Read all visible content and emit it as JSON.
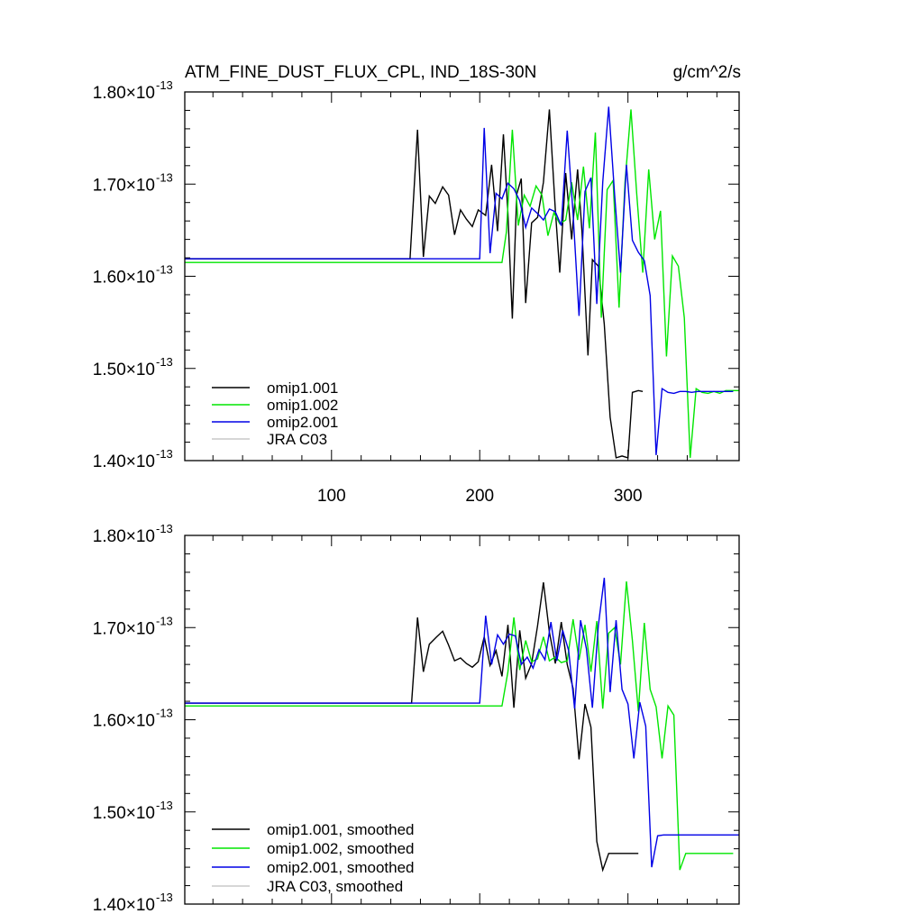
{
  "chart_data": [
    {
      "type": "line",
      "title": "ATM_FINE_DUST_FLUX_CPL, IND_18S-30N",
      "units": "g/cm^2/s",
      "xlim": [
        1,
        375
      ],
      "ylim": [
        1.4,
        1.8
      ],
      "y_exponent": "-13",
      "x_ticks": [
        100,
        200,
        300
      ],
      "x_tick_labels": [
        "100",
        "200",
        "300"
      ],
      "y_ticks": [
        1.4,
        1.5,
        1.6,
        1.7,
        1.8
      ],
      "y_tick_labels": [
        "1.40",
        "1.50",
        "1.60",
        "1.70",
        "1.80"
      ],
      "legend_position": "bottom-left",
      "series": [
        {
          "name": "omip1.001",
          "color": "#000000",
          "x": [
            1,
            150,
            153,
            158,
            162,
            166,
            170,
            175,
            179,
            183,
            187,
            191,
            195,
            199,
            204,
            208,
            212,
            216,
            219,
            222,
            225,
            228,
            231,
            235,
            239,
            243,
            247,
            251,
            254,
            258,
            262,
            266,
            269,
            273,
            276,
            280,
            284,
            288,
            292,
            296,
            300,
            303,
            307,
            310
          ],
          "y": [
            1.619,
            1.619,
            1.619,
            1.759,
            1.621,
            1.687,
            1.679,
            1.697,
            1.688,
            1.645,
            1.672,
            1.662,
            1.654,
            1.672,
            1.666,
            1.721,
            1.649,
            1.754,
            1.668,
            1.554,
            1.689,
            1.706,
            1.571,
            1.658,
            1.664,
            1.702,
            1.781,
            1.672,
            1.604,
            1.712,
            1.64,
            1.716,
            1.648,
            1.514,
            1.618,
            1.611,
            1.548,
            1.447,
            1.403,
            1.405,
            1.403,
            1.474,
            1.476,
            1.475
          ]
        },
        {
          "name": "omip1.002",
          "color": "#00e600",
          "x": [
            1,
            215,
            218,
            222,
            226,
            230,
            234,
            238,
            242,
            246,
            250,
            254,
            258,
            262,
            266,
            270,
            274,
            278,
            282,
            286,
            290,
            294,
            298,
            302,
            306,
            310,
            314,
            318,
            322,
            326,
            330,
            334,
            338,
            342,
            346,
            350,
            354,
            358,
            362,
            366,
            370,
            375
          ],
          "y": [
            1.615,
            1.615,
            1.648,
            1.759,
            1.655,
            1.688,
            1.676,
            1.698,
            1.688,
            1.644,
            1.669,
            1.657,
            1.661,
            1.702,
            1.661,
            1.719,
            1.652,
            1.756,
            1.555,
            1.694,
            1.704,
            1.566,
            1.702,
            1.781,
            1.688,
            1.604,
            1.716,
            1.64,
            1.671,
            1.513,
            1.622,
            1.611,
            1.555,
            1.403,
            1.478,
            1.474,
            1.473,
            1.475,
            1.473,
            1.476,
            1.476,
            1.476
          ]
        },
        {
          "name": "omip2.001",
          "color": "#0000e6",
          "x": [
            1,
            200,
            203,
            207,
            211,
            215,
            219,
            223,
            227,
            231,
            235,
            239,
            243,
            247,
            251,
            255,
            259,
            263,
            267,
            271,
            275,
            279,
            283,
            287,
            291,
            295,
            299,
            303,
            307,
            311,
            315,
            319,
            323,
            327,
            331,
            335,
            339,
            343,
            347,
            351,
            355,
            359,
            363,
            367,
            371
          ],
          "y": [
            1.619,
            1.619,
            1.761,
            1.625,
            1.69,
            1.684,
            1.701,
            1.695,
            1.682,
            1.653,
            1.674,
            1.668,
            1.661,
            1.673,
            1.67,
            1.655,
            1.758,
            1.668,
            1.557,
            1.692,
            1.707,
            1.57,
            1.702,
            1.784,
            1.688,
            1.604,
            1.721,
            1.639,
            1.626,
            1.617,
            1.579,
            1.406,
            1.478,
            1.474,
            1.473,
            1.475,
            1.475,
            1.474,
            1.475,
            1.475,
            1.475,
            1.475,
            1.475,
            1.475,
            1.475
          ]
        },
        {
          "name": "JRA C03",
          "color": "#c8c8c8",
          "x": [],
          "y": []
        }
      ]
    },
    {
      "type": "line",
      "xlim": [
        1,
        375
      ],
      "ylim": [
        1.4,
        1.8
      ],
      "y_exponent": "-13",
      "x_ticks": [
        100,
        200,
        300
      ],
      "y_ticks": [
        1.4,
        1.5,
        1.6,
        1.7,
        1.8
      ],
      "y_tick_labels": [
        "1.40",
        "1.50",
        "1.60",
        "1.70",
        "1.80"
      ],
      "legend_position": "bottom-left",
      "series": [
        {
          "name": "omip1.001, smoothed",
          "color": "#000000",
          "x": [
            1,
            150,
            154,
            158,
            162,
            166,
            171,
            175,
            179,
            183,
            187,
            191,
            195,
            199,
            203,
            207,
            211,
            215,
            219,
            223,
            227,
            231,
            235,
            239,
            243,
            247,
            251,
            255,
            259,
            263,
            267,
            271,
            275,
            279,
            283,
            287,
            291,
            295,
            299,
            303,
            307
          ],
          "y": [
            1.618,
            1.618,
            1.618,
            1.711,
            1.652,
            1.682,
            1.69,
            1.696,
            1.681,
            1.664,
            1.667,
            1.661,
            1.657,
            1.663,
            1.69,
            1.659,
            1.675,
            1.647,
            1.703,
            1.613,
            1.697,
            1.645,
            1.661,
            1.702,
            1.749,
            1.695,
            1.661,
            1.706,
            1.66,
            1.634,
            1.557,
            1.617,
            1.592,
            1.468,
            1.437,
            1.455,
            1.455,
            1.455,
            1.455,
            1.455,
            1.455
          ]
        },
        {
          "name": "omip1.002, smoothed",
          "color": "#00e600",
          "x": [
            1,
            215,
            219,
            223,
            227,
            231,
            235,
            239,
            243,
            247,
            251,
            255,
            259,
            263,
            267,
            271,
            275,
            279,
            283,
            287,
            291,
            295,
            299,
            303,
            307,
            311,
            315,
            319,
            323,
            327,
            331,
            335,
            339,
            343,
            347,
            351,
            355,
            359,
            363,
            367,
            371
          ],
          "y": [
            1.615,
            1.615,
            1.652,
            1.711,
            1.654,
            1.686,
            1.663,
            1.666,
            1.69,
            1.664,
            1.668,
            1.662,
            1.664,
            1.709,
            1.665,
            1.703,
            1.652,
            1.707,
            1.612,
            1.694,
            1.7,
            1.66,
            1.75,
            1.686,
            1.609,
            1.705,
            1.633,
            1.614,
            1.558,
            1.615,
            1.605,
            1.437,
            1.455,
            1.455,
            1.455,
            1.455,
            1.455,
            1.455,
            1.455,
            1.455,
            1.455
          ]
        },
        {
          "name": "omip2.001, smoothed",
          "color": "#0000e6",
          "x": [
            1,
            200,
            204,
            208,
            212,
            216,
            220,
            224,
            228,
            232,
            236,
            240,
            244,
            248,
            252,
            256,
            260,
            264,
            268,
            272,
            276,
            280,
            284,
            288,
            292,
            296,
            300,
            304,
            308,
            312,
            316,
            320,
            324,
            328,
            332,
            336,
            340,
            344,
            348,
            352,
            356,
            360,
            364,
            368,
            372,
            375
          ],
          "y": [
            1.618,
            1.618,
            1.713,
            1.66,
            1.692,
            1.682,
            1.693,
            1.691,
            1.66,
            1.668,
            1.656,
            1.676,
            1.665,
            1.706,
            1.664,
            1.697,
            1.675,
            1.612,
            1.708,
            1.677,
            1.613,
            1.702,
            1.754,
            1.63,
            1.708,
            1.633,
            1.617,
            1.558,
            1.619,
            1.593,
            1.44,
            1.474,
            1.475,
            1.475,
            1.475,
            1.475,
            1.475,
            1.475,
            1.475,
            1.475,
            1.475,
            1.475,
            1.475,
            1.475,
            1.475,
            1.475
          ]
        },
        {
          "name": "JRA C03, smoothed",
          "color": "#c8c8c8",
          "x": [],
          "y": []
        }
      ]
    }
  ]
}
